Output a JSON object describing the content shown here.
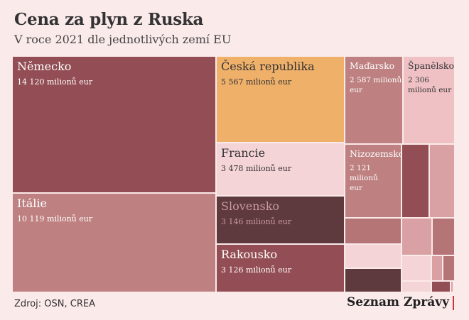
{
  "title": "Cena za plyn z Ruska",
  "subtitle": "V roce 2021 dle jednotlivých zemí EU",
  "source": "Zdroj: OSN, CREA",
  "logo": "Seznam Zprávy",
  "colors": {
    "background": "#fbeaea",
    "highlight": "#efb06a",
    "brand_accent": "#c9343f"
  },
  "chart_data": {
    "type": "treemap",
    "unit": "milionů eur",
    "items": [
      {
        "name": "Německo",
        "value": 14120,
        "label": "14 120 milionů eur",
        "color": "#934d54",
        "text_color": "#ffffff"
      },
      {
        "name": "Itálie",
        "value": 10119,
        "label": "10 119 milionů eur",
        "color": "#be8080",
        "text_color": "#ffffff"
      },
      {
        "name": "Česká republika",
        "value": 5567,
        "label": "5 567 milionů eur",
        "color": "#efb06a",
        "text_color": "#333333"
      },
      {
        "name": "Francie",
        "value": 3478,
        "label": "3 478 milionů eur",
        "color": "#f5d4d7",
        "text_color": "#333333"
      },
      {
        "name": "Slovensko",
        "value": 3146,
        "label": "3 146 milionů eur",
        "color": "#5e393d",
        "text_color": "#c79a9d"
      },
      {
        "name": "Rakousko",
        "value": 3126,
        "label": "3 126 milionů eur",
        "color": "#934d54",
        "text_color": "#ffffff"
      },
      {
        "name": "Maďarsko",
        "value": 2587,
        "label": "2 587 milionů\neur",
        "color": "#be8080",
        "text_color": "#ffffff"
      },
      {
        "name": "Španělsko",
        "value": 2306,
        "label": "2 306\nmilionů eur",
        "color": "#efc1c4",
        "text_color": "#333333"
      },
      {
        "name": "Nizozemsko",
        "value": 2121,
        "label": "2 121\nmilionů\neur",
        "color": "#be8080",
        "text_color": "#ffffff"
      },
      {
        "name": "",
        "value": 1300,
        "label": "",
        "color": "#934d54"
      },
      {
        "name": "",
        "value": 1250,
        "label": "",
        "color": "#d9a1a3"
      },
      {
        "name": "",
        "value": 1100,
        "label": "",
        "color": "#b57476"
      },
      {
        "name": "",
        "value": 1050,
        "label": "",
        "color": "#f5d4d7"
      },
      {
        "name": "",
        "value": 1000,
        "label": "",
        "color": "#5e393d"
      },
      {
        "name": "",
        "value": 650,
        "label": "",
        "color": "#d9a1a3"
      },
      {
        "name": "",
        "value": 650,
        "label": "",
        "color": "#b57476"
      },
      {
        "name": "",
        "value": 450,
        "label": "",
        "color": "#f5d4d7"
      },
      {
        "name": "",
        "value": 450,
        "label": "",
        "color": "#d9a1a3"
      },
      {
        "name": "",
        "value": 250,
        "label": "",
        "color": "#b57476"
      },
      {
        "name": "",
        "value": 130,
        "label": "",
        "color": "#f5d4d7"
      },
      {
        "name": "",
        "value": 250,
        "label": "",
        "color": "#934d54"
      },
      {
        "name": "",
        "value": 100,
        "label": "",
        "color": "#d9a1a3"
      },
      {
        "name": "",
        "value": 50,
        "label": "",
        "color": "#934d54"
      }
    ]
  }
}
